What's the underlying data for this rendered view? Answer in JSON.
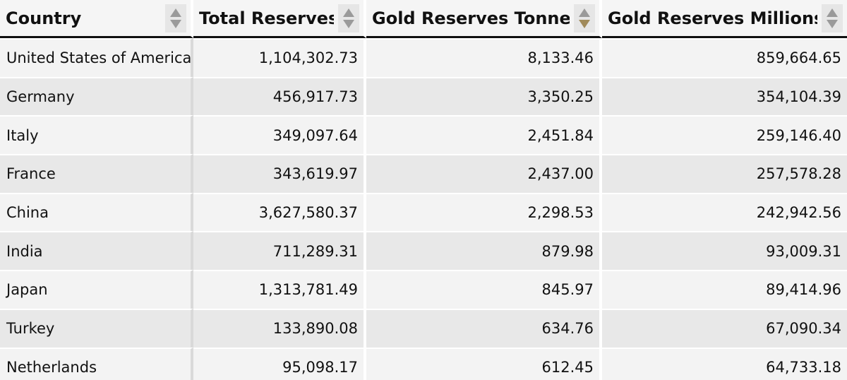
{
  "table": {
    "columns": [
      {
        "label": "Country",
        "sort": "none"
      },
      {
        "label": "Total Reserves",
        "sort": "none"
      },
      {
        "label": "Gold Reserves Tonnes",
        "sort": "descending"
      },
      {
        "label": "Gold Reserves Millions",
        "sort": "none"
      }
    ],
    "rows": [
      {
        "country": "United States of America",
        "total": "1,104,302.73",
        "tonnes": "8,133.46",
        "millions": "859,664.65"
      },
      {
        "country": "Germany",
        "total": "456,917.73",
        "tonnes": "3,350.25",
        "millions": "354,104.39"
      },
      {
        "country": "Italy",
        "total": "349,097.64",
        "tonnes": "2,451.84",
        "millions": "259,146.40"
      },
      {
        "country": "France",
        "total": "343,619.97",
        "tonnes": "2,437.00",
        "millions": "257,578.28"
      },
      {
        "country": "China",
        "total": "3,627,580.37",
        "tonnes": "2,298.53",
        "millions": "242,942.56"
      },
      {
        "country": "India",
        "total": "711,289.31",
        "tonnes": "879.98",
        "millions": "93,009.31"
      },
      {
        "country": "Japan",
        "total": "1,313,781.49",
        "tonnes": "845.97",
        "millions": "89,414.96"
      },
      {
        "country": "Turkey",
        "total": "133,890.08",
        "tonnes": "634.76",
        "millions": "67,090.34"
      },
      {
        "country": "Netherlands",
        "total": "95,098.17",
        "tonnes": "612.45",
        "millions": "64,733.18"
      }
    ]
  },
  "colors": {
    "header_bg": "#f5f5f5",
    "row_light": "#f3f3f3",
    "row_dark": "#e8e8e8",
    "sort_active": "#a08a5a",
    "sort_inactive": "#9a9a9a"
  },
  "icons": {
    "sort": "sort-arrows-icon"
  }
}
